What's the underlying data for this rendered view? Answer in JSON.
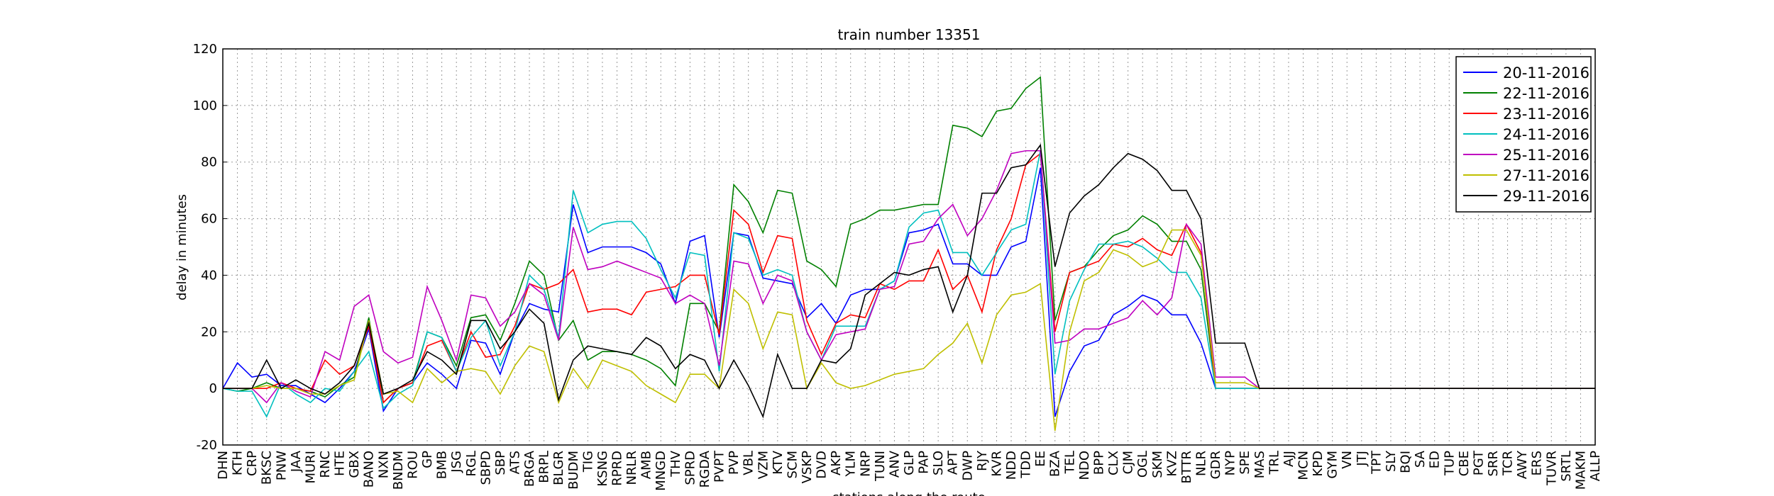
{
  "chart_data": {
    "type": "line",
    "title": "train number 13351",
    "y_label": "delay in minutes",
    "x_label": "stations along the route",
    "categories": [
      "DHN",
      "KTH",
      "CRP",
      "BKSC",
      "PNW",
      "JAA",
      "MURI",
      "RNC",
      "HTE",
      "GBX",
      "BANO",
      "NXN",
      "BNDM",
      "ROU",
      "GP",
      "BMB",
      "JSG",
      "RGL",
      "SBPD",
      "SBP",
      "ATS",
      "BRGA",
      "BRPL",
      "BLGR",
      "BUDM",
      "TIG",
      "KSNG",
      "RPRD",
      "NRLR",
      "AMB",
      "MNGD",
      "THV",
      "SPRD",
      "RGDA",
      "PVPT",
      "PVP",
      "VBL",
      "VZM",
      "KTV",
      "SCM",
      "VSKP",
      "DVD",
      "AKP",
      "YLM",
      "NRP",
      "TUNI",
      "ANV",
      "GLP",
      "PAP",
      "SLO",
      "APT",
      "DWP",
      "RJY",
      "KVR",
      "NDD",
      "TDD",
      "EE",
      "BZA",
      "TEL",
      "NDO",
      "BPP",
      "CLX",
      "CJM",
      "OGL",
      "SKM",
      "KVZ",
      "BTTR",
      "NLR",
      "GDR",
      "NYP",
      "SPE",
      "MAS",
      "TRL",
      "AJJ",
      "MCN",
      "KPD",
      "GYM",
      "VN",
      "JTJ",
      "TPT",
      "SLY",
      "BQI",
      "SA",
      "ED",
      "TUP",
      "CBE",
      "PGT",
      "SRR",
      "TCR",
      "AWY",
      "ERS",
      "TUVR",
      "SRTL",
      "MAKM",
      "ALLP"
    ],
    "series": [
      {
        "name": "20-11-2016",
        "color": "#0000ff",
        "values": [
          0,
          9,
          4,
          5,
          1,
          1,
          -2,
          -5,
          0,
          6,
          21,
          -8,
          0,
          2,
          9,
          5,
          0,
          17,
          16,
          5,
          20,
          30,
          28,
          27,
          65,
          48,
          50,
          50,
          50,
          48,
          44,
          30,
          52,
          54,
          18,
          55,
          54,
          39,
          38,
          37,
          25,
          30,
          23,
          33,
          35,
          35,
          38,
          55,
          56,
          58,
          44,
          44,
          40,
          40,
          50,
          52,
          78,
          -10,
          6,
          15,
          17,
          26,
          29,
          33,
          31,
          26,
          26,
          16,
          0,
          0,
          0,
          0,
          0,
          0,
          0,
          0,
          0,
          0,
          0,
          0,
          0,
          0,
          0,
          0,
          0,
          0,
          0,
          0,
          0,
          0,
          0,
          0,
          0,
          0,
          0
        ]
      },
      {
        "name": "22-11-2016",
        "color": "#008000",
        "values": [
          0,
          -1,
          0,
          2,
          0,
          0,
          -1,
          -3,
          1,
          4,
          25,
          -5,
          0,
          2,
          20,
          18,
          8,
          25,
          26,
          17,
          30,
          45,
          40,
          17,
          24,
          10,
          13,
          13,
          12,
          10,
          7,
          1,
          30,
          30,
          20,
          72,
          66,
          55,
          70,
          69,
          45,
          42,
          36,
          58,
          60,
          63,
          63,
          64,
          65,
          65,
          93,
          92,
          89,
          98,
          99,
          106,
          110,
          24,
          41,
          43,
          49,
          54,
          56,
          61,
          58,
          52,
          52,
          42,
          0,
          0,
          0,
          0,
          0,
          0,
          0,
          0,
          0,
          0,
          0,
          0,
          0,
          0,
          0,
          0,
          0,
          0,
          0,
          0,
          0,
          0,
          0,
          0,
          0,
          0,
          0
        ]
      },
      {
        "name": "23-11-2016",
        "color": "#ff0000",
        "values": [
          0,
          0,
          0,
          0,
          2,
          0,
          -1,
          10,
          5,
          8,
          22,
          -5,
          0,
          2,
          15,
          17,
          6,
          20,
          11,
          12,
          22,
          37,
          35,
          37,
          42,
          27,
          28,
          28,
          26,
          34,
          35,
          36,
          40,
          40,
          19,
          63,
          58,
          41,
          54,
          53,
          24,
          12,
          23,
          26,
          25,
          37,
          35,
          38,
          38,
          49,
          35,
          40,
          27,
          49,
          60,
          79,
          83,
          20,
          41,
          43,
          45,
          51,
          50,
          53,
          49,
          47,
          58,
          48,
          0,
          0,
          0,
          0,
          0,
          0,
          0,
          0,
          0,
          0,
          0,
          0,
          0,
          0,
          0,
          0,
          0,
          0,
          0,
          0,
          0,
          0,
          0,
          0,
          0,
          0,
          0
        ]
      },
      {
        "name": "24-11-2016",
        "color": "#00bfbf",
        "values": [
          0,
          -1,
          -1,
          -10,
          2,
          -2,
          -5,
          0,
          -1,
          6,
          13,
          -7,
          -2,
          1,
          20,
          18,
          6,
          18,
          24,
          8,
          20,
          40,
          35,
          18,
          70,
          55,
          58,
          59,
          59,
          53,
          42,
          32,
          48,
          47,
          6,
          55,
          53,
          40,
          42,
          40,
          20,
          10,
          22,
          22,
          22,
          35,
          38,
          57,
          62,
          63,
          48,
          48,
          40,
          48,
          56,
          58,
          84,
          5,
          31,
          42,
          51,
          51,
          52,
          50,
          46,
          41,
          41,
          32,
          0,
          0,
          0,
          0,
          0,
          0,
          0,
          0,
          0,
          0,
          0,
          0,
          0,
          0,
          0,
          0,
          0,
          0,
          0,
          0,
          0,
          0,
          0,
          0,
          0,
          0,
          0
        ]
      },
      {
        "name": "25-11-2016",
        "color": "#bf00bf",
        "values": [
          0,
          0,
          0,
          -5,
          2,
          -1,
          -3,
          13,
          10,
          29,
          33,
          13,
          9,
          11,
          36,
          24,
          10,
          33,
          32,
          22,
          27,
          37,
          33,
          17,
          57,
          42,
          43,
          45,
          43,
          41,
          39,
          30,
          33,
          30,
          8,
          45,
          44,
          30,
          40,
          38,
          20,
          10,
          19,
          20,
          21,
          35,
          36,
          51,
          52,
          60,
          65,
          54,
          60,
          70,
          83,
          84,
          84,
          16,
          17,
          21,
          21,
          23,
          25,
          31,
          26,
          32,
          58,
          51,
          4,
          4,
          4,
          0,
          0,
          0,
          0,
          0,
          0,
          0,
          0,
          0,
          0,
          0,
          0,
          0,
          0,
          0,
          0,
          0,
          0,
          0,
          0,
          0,
          0,
          0,
          0
        ]
      },
      {
        "name": "27-11-2016",
        "color": "#bfbf00",
        "values": [
          0,
          0,
          0,
          1,
          0,
          0,
          -2,
          -2,
          1,
          3,
          24,
          -2,
          -1,
          -5,
          7,
          2,
          6,
          7,
          6,
          -2,
          8,
          15,
          13,
          -5,
          7,
          0,
          10,
          8,
          6,
          1,
          -2,
          -5,
          5,
          5,
          0,
          35,
          30,
          14,
          27,
          26,
          0,
          9,
          2,
          0,
          1,
          3,
          5,
          6,
          7,
          12,
          16,
          23,
          9,
          26,
          33,
          34,
          37,
          -15,
          20,
          38,
          41,
          49,
          47,
          43,
          45,
          56,
          56,
          47,
          2,
          2,
          2,
          0,
          0,
          0,
          0,
          0,
          0,
          0,
          0,
          0,
          0,
          0,
          0,
          0,
          0,
          0,
          0,
          0,
          0,
          0,
          0,
          0,
          0,
          0,
          0
        ]
      },
      {
        "name": "29-11-2016",
        "color": "#000000",
        "values": [
          0,
          0,
          0,
          10,
          0,
          3,
          0,
          -2,
          2,
          8,
          23,
          -2,
          0,
          3,
          13,
          10,
          5,
          24,
          24,
          14,
          20,
          28,
          23,
          -4,
          10,
          15,
          14,
          13,
          12,
          18,
          15,
          7,
          12,
          10,
          0,
          10,
          1,
          -10,
          12,
          0,
          0,
          10,
          9,
          14,
          33,
          37,
          41,
          40,
          42,
          43,
          27,
          40,
          69,
          69,
          78,
          79,
          86,
          43,
          62,
          68,
          72,
          78,
          83,
          81,
          77,
          70,
          70,
          60,
          16,
          16,
          16,
          0,
          0,
          0,
          0,
          0,
          0,
          0,
          0,
          0,
          0,
          0,
          0,
          0,
          0,
          0,
          0,
          0,
          0,
          0,
          0,
          0,
          0,
          0,
          0
        ]
      }
    ],
    "ylim": [
      -20,
      120
    ],
    "yticks": [
      -20,
      0,
      20,
      40,
      60,
      80,
      100,
      120
    ],
    "grid": true,
    "legend": "upper right"
  }
}
